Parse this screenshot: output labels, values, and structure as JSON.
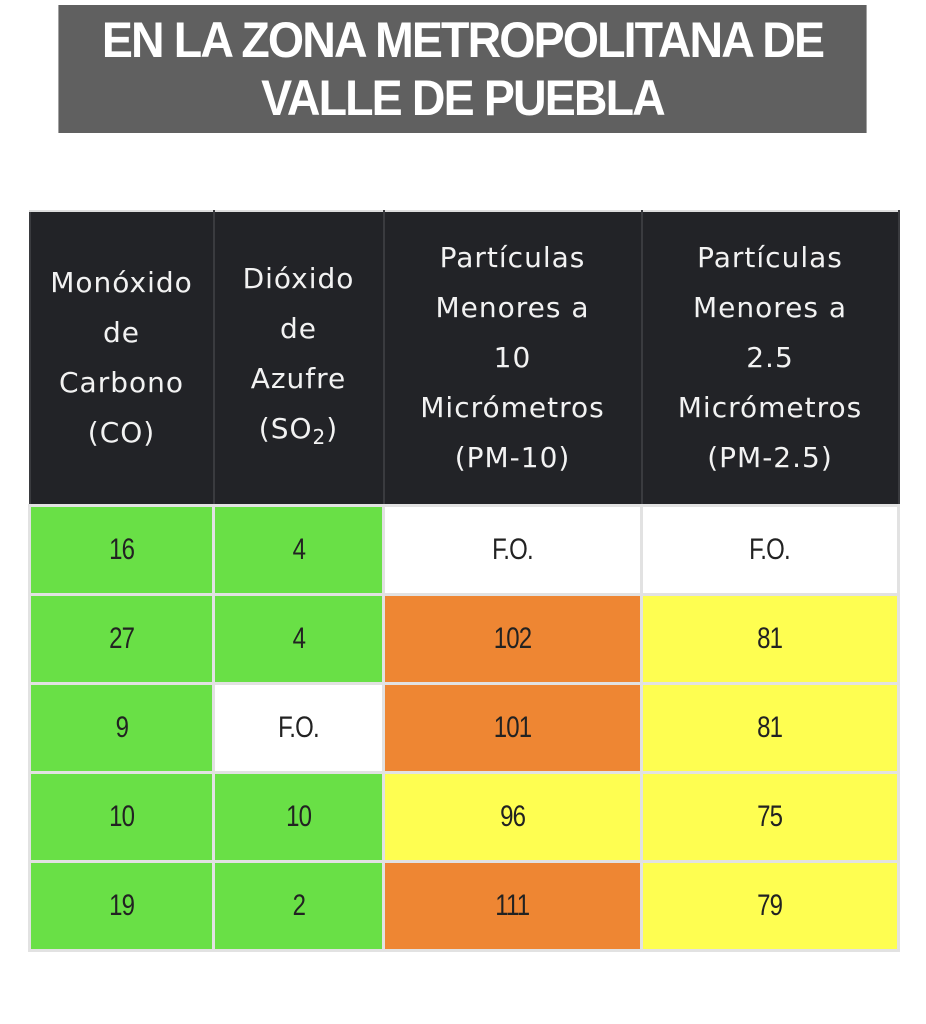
{
  "banner": {
    "line1": "EN LA ZONA METROPOLITANA DE",
    "line2": "VALLE DE PUEBLA",
    "background": "#606060"
  },
  "table": {
    "columns": [
      {
        "lines": [
          "Monóxido",
          "de",
          "Carbono",
          "(CO)"
        ]
      },
      {
        "lines": [
          "Dióxido",
          "de",
          "Azufre",
          "(SO",
          "2",
          ")"
        ]
      },
      {
        "lines": [
          "Partículas",
          "Menores a",
          "10",
          "Micrómetros",
          "(PM-10)"
        ]
      },
      {
        "lines": [
          "Partículas",
          "Menores a",
          "2.5",
          "Micrómetros",
          "(PM-2.5)"
        ]
      }
    ],
    "colors": {
      "green": "#69e046",
      "yellow": "#fefe51",
      "orange": "#ee8633",
      "white": "#ffffff",
      "header": "#222327"
    },
    "rows": [
      [
        {
          "v": "16",
          "c": "#69e046"
        },
        {
          "v": "4",
          "c": "#69e046"
        },
        {
          "v": "F.O.",
          "c": "#ffffff"
        },
        {
          "v": "F.O.",
          "c": "#ffffff"
        }
      ],
      [
        {
          "v": "27",
          "c": "#69e046"
        },
        {
          "v": "4",
          "c": "#69e046"
        },
        {
          "v": "102",
          "c": "#ee8633"
        },
        {
          "v": "81",
          "c": "#fefe51"
        }
      ],
      [
        {
          "v": "9",
          "c": "#69e046"
        },
        {
          "v": "F.O.",
          "c": "#ffffff"
        },
        {
          "v": "101",
          "c": "#ee8633"
        },
        {
          "v": "81",
          "c": "#fefe51"
        }
      ],
      [
        {
          "v": "10",
          "c": "#69e046"
        },
        {
          "v": "10",
          "c": "#69e046"
        },
        {
          "v": "96",
          "c": "#fefe51"
        },
        {
          "v": "75",
          "c": "#fefe51"
        }
      ],
      [
        {
          "v": "19",
          "c": "#69e046"
        },
        {
          "v": "2",
          "c": "#69e046"
        },
        {
          "v": "111",
          "c": "#ee8633"
        },
        {
          "v": "79",
          "c": "#fefe51"
        }
      ]
    ]
  }
}
